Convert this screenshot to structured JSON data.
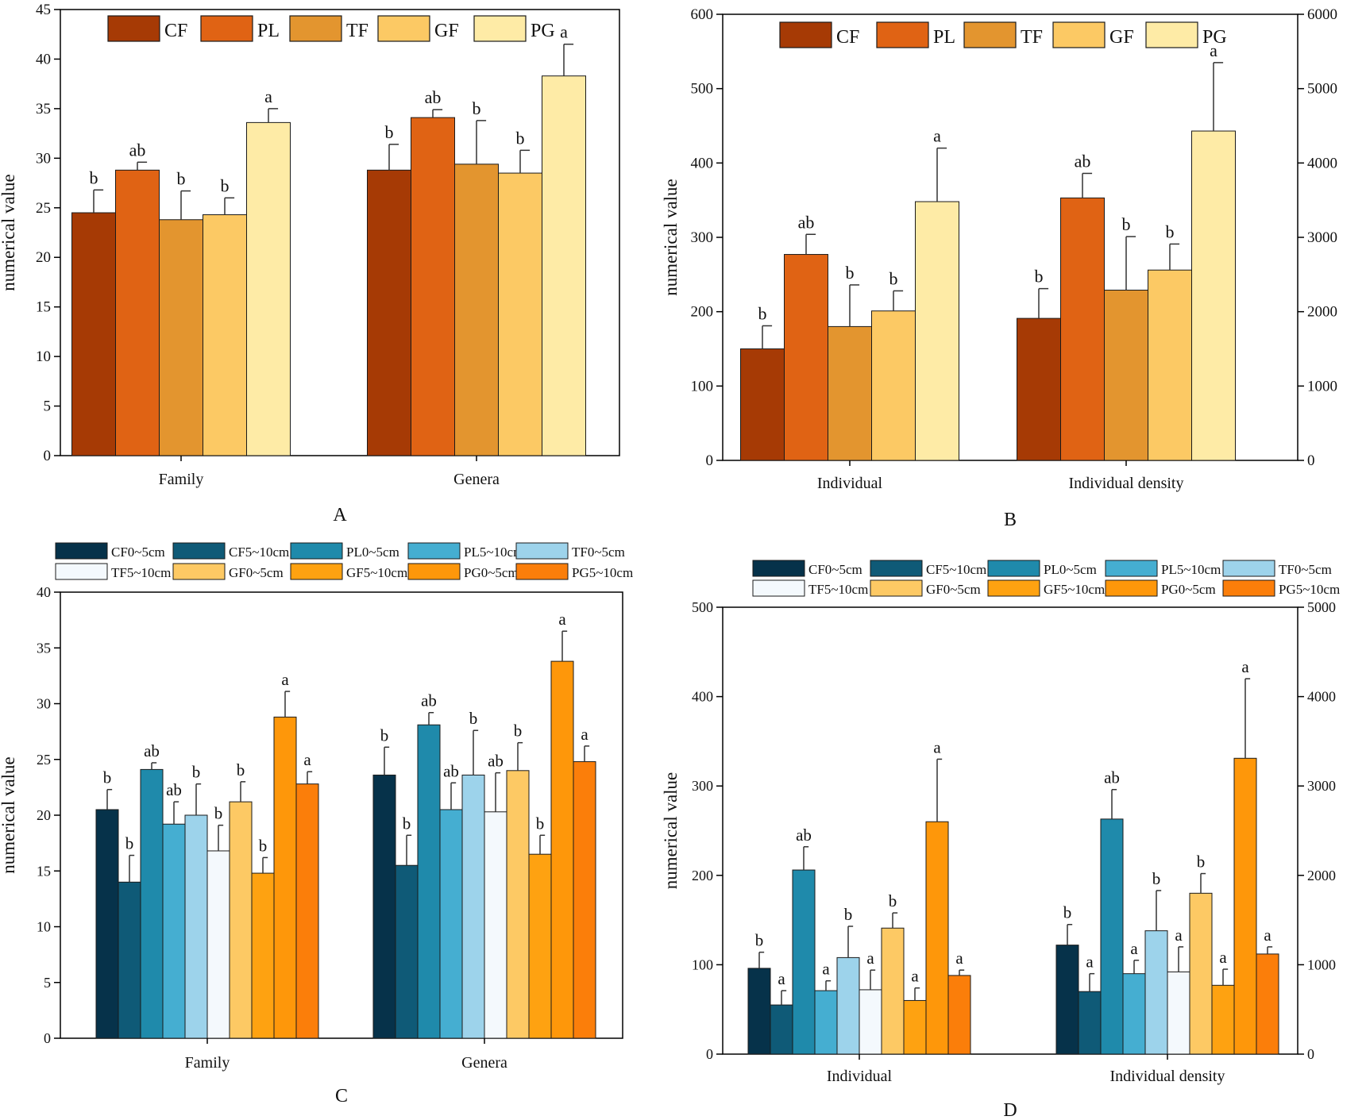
{
  "colors": {
    "group5": [
      "#a63a05",
      "#e06314",
      "#e3952f",
      "#fcc964",
      "#feeba6"
    ],
    "group10": [
      "#06324a",
      "#0f5a77",
      "#1f8aab",
      "#45aed1",
      "#9dd3eb",
      "#f4f9fd",
      "#fdc964",
      "#fea211",
      "#fe970a",
      "#fb7e0a"
    ]
  },
  "chart_data": [
    {
      "panel": "A",
      "type": "bar",
      "title": "",
      "xlabel": "",
      "ylabel": "numerical value",
      "categories": [
        "Family",
        "Genera"
      ],
      "ylim": [
        0,
        45
      ],
      "yticks": [
        0,
        5,
        10,
        15,
        20,
        25,
        30,
        35,
        40,
        45
      ],
      "legend_position": "top",
      "series": [
        {
          "name": "CF",
          "values": [
            24.5,
            28.8
          ],
          "errors": [
            2.3,
            2.6
          ],
          "letters": [
            "b",
            "b"
          ]
        },
        {
          "name": "PL",
          "values": [
            28.8,
            34.1
          ],
          "errors": [
            0.8,
            0.8
          ],
          "letters": [
            "ab",
            "ab"
          ]
        },
        {
          "name": "TF",
          "values": [
            23.8,
            29.4
          ],
          "errors": [
            2.9,
            4.4
          ],
          "letters": [
            "b",
            "b"
          ]
        },
        {
          "name": "GF",
          "values": [
            24.3,
            28.5
          ],
          "errors": [
            1.7,
            2.3
          ],
          "letters": [
            "b",
            "b"
          ]
        },
        {
          "name": "PG",
          "values": [
            33.6,
            38.3
          ],
          "errors": [
            1.4,
            3.2
          ],
          "letters": [
            "a",
            "a"
          ]
        }
      ]
    },
    {
      "panel": "B",
      "type": "bar",
      "title": "",
      "xlabel": "",
      "ylabel": "numerical value",
      "categories": [
        "Individual",
        "Individual density"
      ],
      "ylim": [
        0,
        600
      ],
      "yticks": [
        0,
        100,
        200,
        300,
        400,
        500,
        600
      ],
      "y2lim": [
        0,
        6000
      ],
      "y2ticks": [
        0,
        1000,
        2000,
        3000,
        4000,
        5000,
        6000
      ],
      "legend_position": "top",
      "series": [
        {
          "name": "CF",
          "values": [
            150,
            1910
          ],
          "errors": [
            31,
            400
          ],
          "letters": [
            "b",
            "b"
          ]
        },
        {
          "name": "PL",
          "values": [
            277,
            3530
          ],
          "errors": [
            27,
            330
          ],
          "letters": [
            "ab",
            "ab"
          ]
        },
        {
          "name": "TF",
          "values": [
            180,
            2290
          ],
          "errors": [
            56,
            720
          ],
          "letters": [
            "b",
            "b"
          ]
        },
        {
          "name": "GF",
          "values": [
            201,
            2560
          ],
          "errors": [
            27,
            350
          ],
          "letters": [
            "b",
            "b"
          ]
        },
        {
          "name": "PG",
          "values": [
            348,
            4430
          ],
          "errors": [
            72,
            920
          ],
          "letters": [
            "a",
            "a"
          ]
        }
      ]
    },
    {
      "panel": "C",
      "type": "bar",
      "title": "",
      "xlabel": "",
      "ylabel": "numerical value",
      "categories": [
        "Family",
        "Genera"
      ],
      "ylim": [
        0,
        40
      ],
      "yticks": [
        0,
        5,
        10,
        15,
        20,
        25,
        30,
        35,
        40
      ],
      "legend_position": "top",
      "series": [
        {
          "name": "CF0~5cm",
          "values": [
            20.5,
            23.6
          ],
          "errors": [
            1.8,
            2.5
          ],
          "letters": [
            "b",
            "b"
          ]
        },
        {
          "name": "CF5~10cm",
          "values": [
            14.0,
            15.5
          ],
          "errors": [
            2.4,
            2.7
          ],
          "letters": [
            "b",
            "b"
          ]
        },
        {
          "name": "PL0~5cm",
          "values": [
            24.1,
            28.1
          ],
          "errors": [
            0.6,
            1.1
          ],
          "letters": [
            "ab",
            "ab"
          ]
        },
        {
          "name": "PL5~10cm",
          "values": [
            19.2,
            20.5
          ],
          "errors": [
            2.0,
            2.4
          ],
          "letters": [
            "ab",
            "ab"
          ]
        },
        {
          "name": "TF0~5cm",
          "values": [
            20.0,
            23.6
          ],
          "errors": [
            2.8,
            4.0
          ],
          "letters": [
            "b",
            "b"
          ]
        },
        {
          "name": "TF5~10cm",
          "values": [
            16.8,
            20.3
          ],
          "errors": [
            2.3,
            3.5
          ],
          "letters": [
            "b",
            "ab"
          ]
        },
        {
          "name": "GF0~5cm",
          "values": [
            21.2,
            24.0
          ],
          "errors": [
            1.8,
            2.5
          ],
          "letters": [
            "b",
            "b"
          ]
        },
        {
          "name": "GF5~10cm",
          "values": [
            14.8,
            16.5
          ],
          "errors": [
            1.4,
            1.7
          ],
          "letters": [
            "b",
            "b"
          ]
        },
        {
          "name": "PG0~5cm",
          "values": [
            28.8,
            33.8
          ],
          "errors": [
            2.3,
            2.7
          ],
          "letters": [
            "a",
            "a"
          ]
        },
        {
          "name": "PG5~10cm",
          "values": [
            22.8,
            24.8
          ],
          "errors": [
            1.1,
            1.4
          ],
          "letters": [
            "a",
            "a"
          ]
        }
      ]
    },
    {
      "panel": "D",
      "type": "bar",
      "title": "",
      "xlabel": "",
      "ylabel": "numerical value",
      "categories": [
        "Individual",
        "Individual density"
      ],
      "ylim": [
        0,
        500
      ],
      "yticks": [
        0,
        100,
        200,
        300,
        400,
        500
      ],
      "y2lim": [
        0,
        5000
      ],
      "y2ticks": [
        0,
        1000,
        2000,
        3000,
        4000,
        5000
      ],
      "legend_position": "top",
      "series": [
        {
          "name": "CF0~5cm",
          "values": [
            96,
            1220
          ],
          "errors": [
            18,
            230
          ],
          "letters": [
            "b",
            "b"
          ]
        },
        {
          "name": "CF5~10cm",
          "values": [
            55,
            700
          ],
          "errors": [
            16,
            200
          ],
          "letters": [
            "a",
            "a"
          ]
        },
        {
          "name": "PL0~5cm",
          "values": [
            206,
            2630
          ],
          "errors": [
            26,
            330
          ],
          "letters": [
            "ab",
            "ab"
          ]
        },
        {
          "name": "PL5~10cm",
          "values": [
            71,
            900
          ],
          "errors": [
            11,
            150
          ],
          "letters": [
            "a",
            "a"
          ]
        },
        {
          "name": "TF0~5cm",
          "values": [
            108,
            1380
          ],
          "errors": [
            35,
            450
          ],
          "letters": [
            "b",
            "b"
          ]
        },
        {
          "name": "TF5~10cm",
          "values": [
            72,
            920
          ],
          "errors": [
            22,
            280
          ],
          "letters": [
            "a",
            "a"
          ]
        },
        {
          "name": "GF0~5cm",
          "values": [
            141,
            1800
          ],
          "errors": [
            17,
            220
          ],
          "letters": [
            "b",
            "b"
          ]
        },
        {
          "name": "GF5~10cm",
          "values": [
            60,
            770
          ],
          "errors": [
            14,
            180
          ],
          "letters": [
            "a",
            "a"
          ]
        },
        {
          "name": "PG0~5cm",
          "values": [
            260,
            3310
          ],
          "errors": [
            70,
            890
          ],
          "letters": [
            "a",
            "a"
          ]
        },
        {
          "name": "PG5~10cm",
          "values": [
            88,
            1120
          ],
          "errors": [
            6,
            80
          ],
          "letters": [
            "a",
            "a"
          ]
        }
      ]
    }
  ]
}
